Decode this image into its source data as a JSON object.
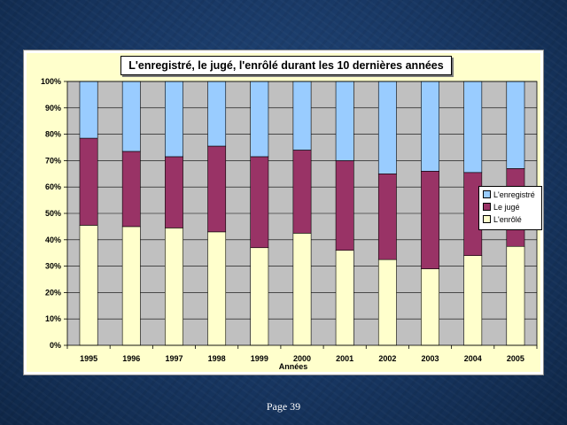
{
  "chart_data": {
    "type": "bar",
    "stacked": "percent",
    "title": "L'enregistré, le jugé, l'enrôlé durant les 10 dernières années",
    "xlabel": "Années",
    "ylabel": "",
    "categories": [
      "1995",
      "1996",
      "1997",
      "1998",
      "1999",
      "2000",
      "2001",
      "2002",
      "2003",
      "2004",
      "2005"
    ],
    "yticks": [
      "0%",
      "10%",
      "20%",
      "30%",
      "40%",
      "50%",
      "60%",
      "70%",
      "80%",
      "90%",
      "100%"
    ],
    "ylim": [
      0,
      100
    ],
    "grid": true,
    "legend_position": "right",
    "series": [
      {
        "name": "L'enrôlé",
        "color": "#ffffcc",
        "values": [
          45.5,
          45,
          44.5,
          43,
          37,
          42.5,
          36,
          32.5,
          29,
          34,
          37.5
        ]
      },
      {
        "name": "Le jugé",
        "color": "#993366",
        "values": [
          33,
          28.5,
          27,
          32.5,
          34.5,
          31.5,
          34,
          32.5,
          37,
          31.5,
          29.5
        ]
      },
      {
        "name": "L'enregistré",
        "color": "#99ccff",
        "values": [
          21.5,
          26.5,
          28.5,
          24.5,
          28.5,
          26,
          30,
          35,
          34,
          34.5,
          33
        ]
      }
    ],
    "legend_order": [
      "L'enregistré",
      "Le jugé",
      "L'enrôlé"
    ],
    "plot_background": "#c0c0c0"
  },
  "footer": {
    "page_label": "Page 39"
  }
}
